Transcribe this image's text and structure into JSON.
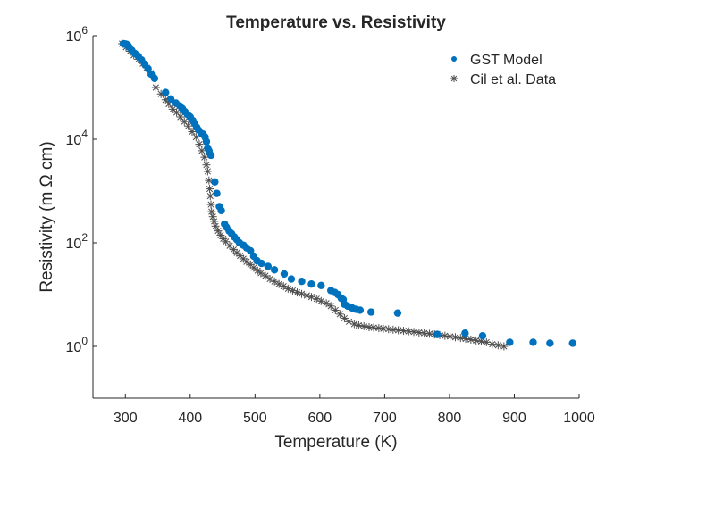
{
  "chart_data": {
    "type": "scatter",
    "title": "Temperature vs. Resistivity",
    "xlabel": "Temperature (K)",
    "ylabel": "Resistivity (m Ω cm)",
    "xlim": [
      250,
      1000
    ],
    "ylim": [
      0.1,
      1000000
    ],
    "yscale": "log",
    "xticks": [
      300,
      400,
      500,
      600,
      700,
      800,
      900,
      1000
    ],
    "yticks": [
      {
        "value": 1,
        "base": "10",
        "exp": "0"
      },
      {
        "value": 100,
        "base": "10",
        "exp": "2"
      },
      {
        "value": 10000,
        "base": "10",
        "exp": "4"
      },
      {
        "value": 1000000,
        "base": "10",
        "exp": "6"
      }
    ],
    "grid": false,
    "legend_position": "top-right",
    "series": [
      {
        "name": "GST Model",
        "marker": "dot",
        "color": "#0072BD",
        "points": [
          [
            297,
            700000
          ],
          [
            300,
            690000
          ],
          [
            302,
            680000
          ],
          [
            304,
            650000
          ],
          [
            306,
            600000
          ],
          [
            310,
            520000
          ],
          [
            315,
            450000
          ],
          [
            320,
            400000
          ],
          [
            325,
            340000
          ],
          [
            330,
            280000
          ],
          [
            335,
            230000
          ],
          [
            340,
            180000
          ],
          [
            345,
            150000
          ],
          [
            362,
            80000
          ],
          [
            370,
            60000
          ],
          [
            378,
            50000
          ],
          [
            384,
            44000
          ],
          [
            388,
            39000
          ],
          [
            392,
            34000
          ],
          [
            396,
            30000
          ],
          [
            400,
            27000
          ],
          [
            404,
            23000
          ],
          [
            407,
            20000
          ],
          [
            410,
            17000
          ],
          [
            413,
            15000
          ],
          [
            417,
            13000
          ],
          [
            420,
            12500
          ],
          [
            423,
            11000
          ],
          [
            425,
            9000
          ],
          [
            427,
            6800
          ],
          [
            429,
            6000
          ],
          [
            432,
            4900
          ],
          [
            438,
            1500
          ],
          [
            441,
            900
          ],
          [
            445,
            500
          ],
          [
            448,
            420
          ],
          [
            453,
            230
          ],
          [
            456,
            200
          ],
          [
            460,
            170
          ],
          [
            464,
            150
          ],
          [
            468,
            130
          ],
          [
            472,
            115
          ],
          [
            476,
            100
          ],
          [
            482,
            90
          ],
          [
            487,
            80
          ],
          [
            493,
            70
          ],
          [
            498,
            55
          ],
          [
            503,
            45
          ],
          [
            510,
            40
          ],
          [
            520,
            35
          ],
          [
            530,
            30
          ],
          [
            545,
            25
          ],
          [
            556,
            20
          ],
          [
            572,
            18
          ],
          [
            587,
            16
          ],
          [
            602,
            15
          ],
          [
            617,
            12
          ],
          [
            623,
            11
          ],
          [
            628,
            10
          ],
          [
            633,
            8.5
          ],
          [
            636,
            8
          ],
          [
            638,
            6.5
          ],
          [
            643,
            6
          ],
          [
            650,
            5.5
          ],
          [
            656,
            5.2
          ],
          [
            662,
            5
          ],
          [
            679,
            4.6
          ],
          [
            720,
            4.4
          ],
          [
            781,
            1.7
          ],
          [
            824,
            1.8
          ],
          [
            851,
            1.6
          ],
          [
            893,
            1.2
          ],
          [
            929,
            1.2
          ],
          [
            955,
            1.15
          ],
          [
            990,
            1.15
          ]
        ]
      },
      {
        "name": "Cil et al. Data",
        "marker": "asterisk",
        "color": "#4d4d4d",
        "points": [
          [
            295,
            700000
          ],
          [
            301,
            600000
          ],
          [
            307,
            500000
          ],
          [
            313,
            420000
          ],
          [
            320,
            350000
          ],
          [
            327,
            290000
          ],
          [
            333,
            240000
          ],
          [
            339,
            190000
          ],
          [
            347,
            100000
          ],
          [
            355,
            75000
          ],
          [
            362,
            58000
          ],
          [
            367,
            48000
          ],
          [
            373,
            38000
          ],
          [
            379,
            33000
          ],
          [
            385,
            27000
          ],
          [
            391,
            22000
          ],
          [
            397,
            18000
          ],
          [
            403,
            14000
          ],
          [
            409,
            11000
          ],
          [
            414,
            8000
          ],
          [
            418,
            6000
          ],
          [
            422,
            4500
          ],
          [
            425,
            3200
          ],
          [
            427,
            2400
          ],
          [
            429,
            1600
          ],
          [
            430,
            1100
          ],
          [
            431,
            800
          ],
          [
            432,
            550
          ],
          [
            433,
            400
          ],
          [
            435,
            320
          ],
          [
            437,
            260
          ],
          [
            439,
            210
          ],
          [
            443,
            170
          ],
          [
            447,
            140
          ],
          [
            451,
            120
          ],
          [
            455,
            105
          ],
          [
            461,
            88
          ],
          [
            467,
            74
          ],
          [
            472,
            64
          ],
          [
            477,
            56
          ],
          [
            482,
            49
          ],
          [
            487,
            43
          ],
          [
            493,
            38
          ],
          [
            498,
            33
          ],
          [
            504,
            29
          ],
          [
            509,
            26
          ],
          [
            516,
            23
          ],
          [
            523,
            20
          ],
          [
            530,
            18
          ],
          [
            537,
            16
          ],
          [
            544,
            14.5
          ],
          [
            551,
            13
          ],
          [
            558,
            12
          ],
          [
            565,
            11
          ],
          [
            572,
            10.3
          ],
          [
            580,
            9.6
          ],
          [
            587,
            9
          ],
          [
            595,
            8.3
          ],
          [
            602,
            7.5
          ],
          [
            610,
            6.8
          ],
          [
            617,
            6
          ],
          [
            624,
            5
          ],
          [
            631,
            4.2
          ],
          [
            638,
            3.5
          ],
          [
            645,
            3
          ],
          [
            653,
            2.7
          ],
          [
            660,
            2.55
          ],
          [
            668,
            2.45
          ],
          [
            676,
            2.35
          ],
          [
            683,
            2.3
          ],
          [
            691,
            2.25
          ],
          [
            698,
            2.2
          ],
          [
            706,
            2.15
          ],
          [
            713,
            2.1
          ],
          [
            721,
            2.05
          ],
          [
            729,
            2.0
          ],
          [
            737,
            1.95
          ],
          [
            745,
            1.9
          ],
          [
            753,
            1.85
          ],
          [
            761,
            1.8
          ],
          [
            769,
            1.75
          ],
          [
            777,
            1.7
          ],
          [
            785,
            1.65
          ],
          [
            793,
            1.6
          ],
          [
            801,
            1.55
          ],
          [
            809,
            1.5
          ],
          [
            817,
            1.45
          ],
          [
            825,
            1.4
          ],
          [
            833,
            1.35
          ],
          [
            841,
            1.3
          ],
          [
            849,
            1.25
          ],
          [
            857,
            1.2
          ],
          [
            866,
            1.1
          ],
          [
            875,
            1.05
          ],
          [
            884,
            1.0
          ]
        ]
      }
    ]
  }
}
